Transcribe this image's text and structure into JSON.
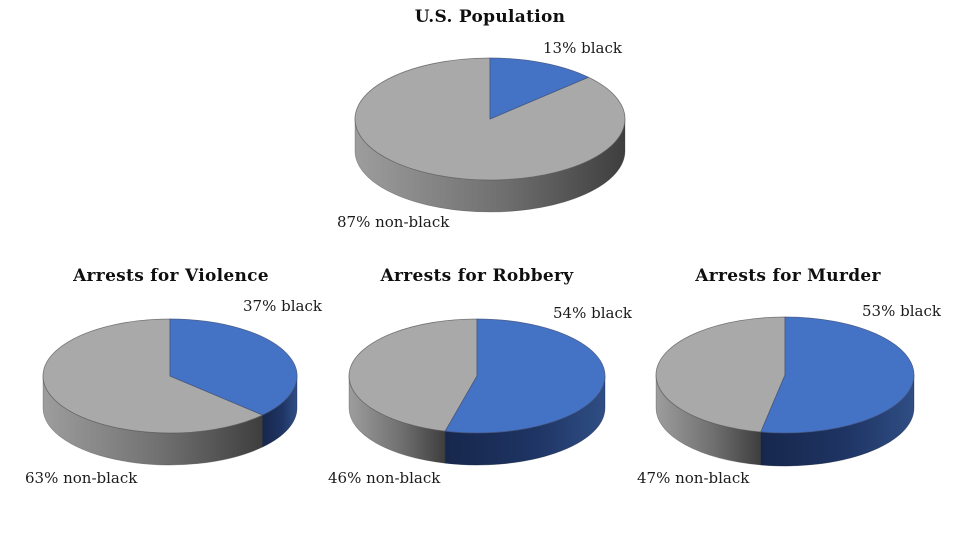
{
  "page": {
    "background": "#FFFFFF",
    "text_color": "#1C1C1C"
  },
  "colors": {
    "black_top": "#4472C4",
    "black_side_dark": "#17274C",
    "black_side_mid": "#1E3463",
    "black_side_light": "#2F4E85",
    "nonblack_top": "#A9A9A9",
    "nonblack_side_light": "#9D9D9D",
    "nonblack_side_mid": "#6F6F6F",
    "nonblack_side_dark": "#3E3E3E",
    "slice_outline": "#5E5E5E"
  },
  "chart_data": [
    {
      "type": "pie",
      "style": "3d",
      "title": "U.S. Population",
      "legend": "none",
      "series": [
        {
          "name": "black",
          "value": 13,
          "unit": "%",
          "label": "13% black"
        },
        {
          "name": "non-black",
          "value": 87,
          "unit": "%",
          "label": "87% non-black"
        }
      ]
    },
    {
      "type": "pie",
      "style": "3d",
      "title": "Arrests for Violence",
      "legend": "none",
      "series": [
        {
          "name": "black",
          "value": 37,
          "unit": "%",
          "label": "37% black"
        },
        {
          "name": "non-black",
          "value": 63,
          "unit": "%",
          "label": "63% non-black"
        }
      ]
    },
    {
      "type": "pie",
      "style": "3d",
      "title": "Arrests for Robbery",
      "legend": "none",
      "series": [
        {
          "name": "black",
          "value": 54,
          "unit": "%",
          "label": "54% black"
        },
        {
          "name": "non-black",
          "value": 46,
          "unit": "%",
          "label": "46% non-black"
        }
      ]
    },
    {
      "type": "pie",
      "style": "3d",
      "title": "Arrests for Murder",
      "legend": "none",
      "series": [
        {
          "name": "black",
          "value": 53,
          "unit": "%",
          "label": "53% black"
        },
        {
          "name": "non-black",
          "value": 47,
          "unit": "%",
          "label": "47% non-black"
        }
      ]
    }
  ]
}
